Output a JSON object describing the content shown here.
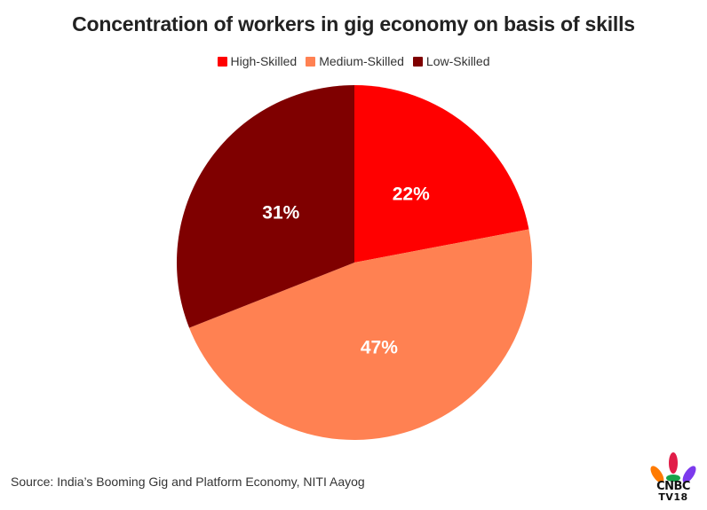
{
  "chart_data": {
    "type": "pie",
    "title": "Concentration of workers in gig economy on basis of skills",
    "legend_position": "top",
    "categories": [
      "High-Skilled",
      "Medium-Skilled",
      "Low-Skilled"
    ],
    "values": [
      22,
      47,
      31
    ],
    "labels": [
      "22%",
      "47%",
      "31%"
    ],
    "colors": [
      "#ff0000",
      "#ff8152",
      "#7f0000"
    ],
    "unit": "%"
  },
  "source": "Source: India’s Booming Gig and Platform Economy, NITI Aayog",
  "logo": {
    "name": "cnbc-tv18-logo",
    "line1": "CNBC",
    "line2": "TV18"
  }
}
